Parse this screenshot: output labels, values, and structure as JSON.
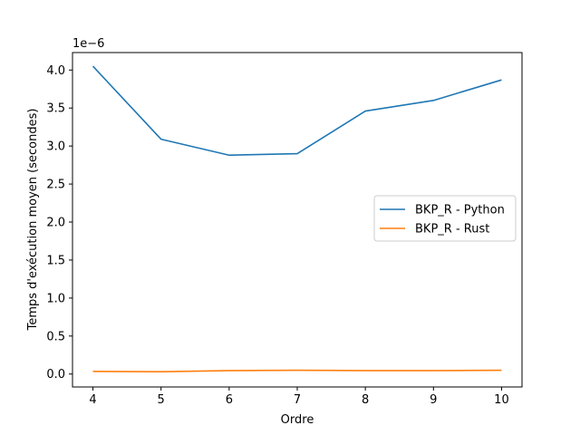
{
  "chart_data": {
    "type": "line",
    "title": "",
    "xlabel": "Ordre",
    "ylabel": "Temps d'exécution moyen (secondes)",
    "y_multiplier_label": "1e−6",
    "x": [
      4,
      5,
      6,
      7,
      8,
      9,
      10
    ],
    "xlim": [
      3.7,
      10.3
    ],
    "ylim": [
      -0.17,
      4.23
    ],
    "x_ticks": [
      4,
      5,
      6,
      7,
      8,
      9,
      10
    ],
    "x_tick_labels": [
      "4",
      "5",
      "6",
      "7",
      "8",
      "9",
      "10"
    ],
    "y_ticks": [
      0.0,
      0.5,
      1.0,
      1.5,
      2.0,
      2.5,
      3.0,
      3.5,
      4.0
    ],
    "y_tick_labels": [
      "0.0",
      "0.5",
      "1.0",
      "1.5",
      "2.0",
      "2.5",
      "3.0",
      "3.5",
      "4.0"
    ],
    "grid": false,
    "legend_position": "center-right",
    "series": [
      {
        "name": "BKP_R - Python",
        "color": "#1f77b4",
        "values": [
          4.05,
          3.09,
          2.88,
          2.9,
          3.46,
          3.6,
          3.87
        ]
      },
      {
        "name": "BKP_R - Rust",
        "color": "#ff7f0e",
        "values": [
          0.035,
          0.03,
          0.045,
          0.05,
          0.045,
          0.045,
          0.05
        ]
      }
    ]
  }
}
